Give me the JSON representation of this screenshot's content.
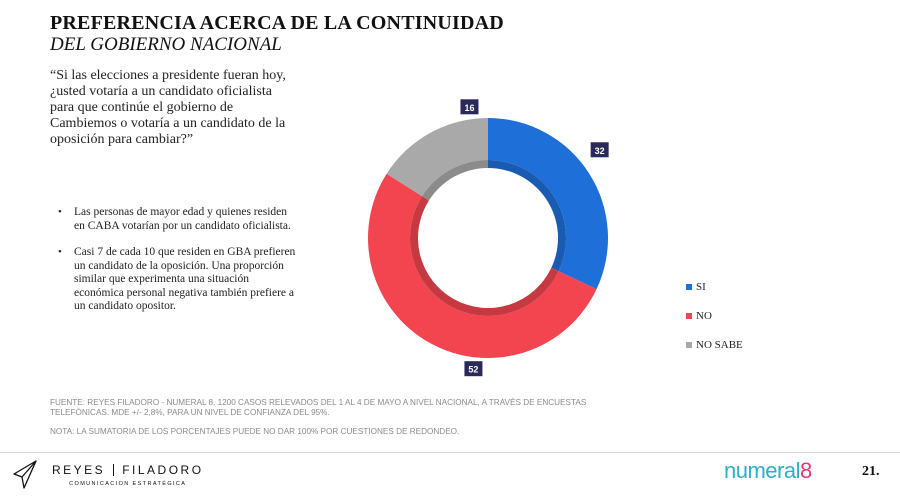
{
  "title": {
    "main": "PREFERENCIA ACERCA DE LA CONTINUIDAD",
    "sub": "DEL GOBIERNO NACIONAL"
  },
  "question": "“Si las elecciones a presidente fueran hoy, ¿usted votaría a un candidato oficialista para que continúe el gobierno de Cambiemos o votaría a un candidato de la oposición para cambiar?”",
  "bullets": [
    "Las personas de mayor edad y quienes residen en CABA votarían por un candidato oficialista.",
    "Casi 7 de cada 10 que residen en GBA prefieren un candidato de la oposición. Una proporción similar que experimenta una situación económica personal negativa también prefiere a un candidato opositor."
  ],
  "chart_data": {
    "type": "pie",
    "donut": true,
    "categories": [
      "SI",
      "NO",
      "NO SABE"
    ],
    "values": [
      32,
      52,
      16
    ],
    "colors": [
      "#1f6fd8",
      "#f2454f",
      "#a9a9a9"
    ],
    "data_labels": [
      "32",
      "52",
      "16"
    ],
    "label_bg_color": "#2a2a5a",
    "legend_position": "right-bottom",
    "start_angle_deg": 0
  },
  "source": "FUENTE: REYES FILADORO - NUMERAL 8. 1200 CASOS RELEVADOS DEL 1 AL 4 DE MAYO A NIVEL NACIONAL, A TRAVÉS DE ENCUESTAS TELEFÓNICAS. MDE +/- 2,8%, PARA UN NIVEL DE CONFIANZA DEL 95%.",
  "note": "NOTA: LA SUMATORIA DE LOS PORCENTAJES PUEDE NO DAR 100% POR CUESTIONES DE REDONDEO.",
  "footer": {
    "brand_left_a": "REYES",
    "brand_left_b": "FILADORO",
    "brand_left_tag": "COMUNICACION ESTRATÉGICA",
    "brand_right_a": "numeral",
    "brand_right_b": "8",
    "brand_right_color": "#2bb0c9",
    "brand_right_accent": "#e6367f",
    "page_number": "21."
  }
}
